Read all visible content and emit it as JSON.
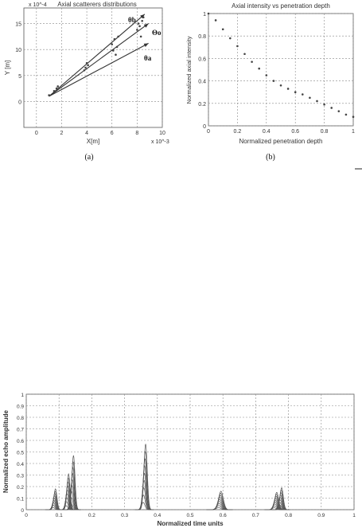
{
  "chart_data": [
    {
      "type": "scatter",
      "title": "Axial scatterers distributions",
      "xlabel": "X[m]",
      "ylabel": "Y [m]",
      "x_exponent": "x 10^-3",
      "y_exponent": "x 10^-4",
      "xlim": [
        -1,
        10
      ],
      "ylim": [
        -5,
        18
      ],
      "xticks": [
        "0",
        "2",
        "4",
        "6",
        "8",
        "10"
      ],
      "yticks": [
        "0",
        "5",
        "10",
        "15"
      ],
      "grid": true,
      "caption": "(a)",
      "angle_labels": [
        "θb",
        "θa",
        "Θo"
      ],
      "series": [
        {
          "values": [
            {
              "x": 1.0,
              "y": 1.2
            },
            {
              "x": 1.6,
              "y": 2.5
            },
            {
              "x": 1.4,
              "y": 2.0
            },
            {
              "x": 1.7,
              "y": 2.9
            },
            {
              "x": 3.9,
              "y": 6.5
            },
            {
              "x": 4.0,
              "y": 7.4
            },
            {
              "x": 3.8,
              "y": 6.0
            },
            {
              "x": 4.1,
              "y": 7.0
            },
            {
              "x": 6.2,
              "y": 12.0
            },
            {
              "x": 6.4,
              "y": 10.5
            },
            {
              "x": 6.0,
              "y": 11.0
            },
            {
              "x": 6.3,
              "y": 9.0
            },
            {
              "x": 6.5,
              "y": 12.5
            },
            {
              "x": 6.1,
              "y": 9.8
            },
            {
              "x": 8.2,
              "y": 14.5
            },
            {
              "x": 8.4,
              "y": 15.5
            },
            {
              "x": 8.0,
              "y": 13.8
            },
            {
              "x": 8.5,
              "y": 16.2
            },
            {
              "x": 8.3,
              "y": 12.5
            },
            {
              "x": 8.1,
              "y": 15.0
            }
          ]
        }
      ],
      "rays": [
        {
          "from": [
            1.0,
            1.0
          ],
          "to": [
            8.6,
            16.8
          ]
        },
        {
          "from": [
            1.0,
            1.0
          ],
          "to": [
            8.9,
            15.0
          ]
        },
        {
          "from": [
            1.0,
            1.0
          ],
          "to": [
            8.9,
            11.2
          ]
        }
      ]
    },
    {
      "type": "scatter",
      "title": "Axial intensity vs penetration depth",
      "xlabel": "Normalized penetration depth",
      "ylabel": "Normalized axial intensity",
      "xlim": [
        0,
        1
      ],
      "ylim": [
        0,
        1
      ],
      "xticks": [
        "0",
        "0.2",
        "0.4",
        "0.6",
        "0.8",
        "1"
      ],
      "yticks": [
        "0",
        "0.2",
        "0.4",
        "0.6",
        "0.8",
        "1"
      ],
      "grid": true,
      "caption": "(b)",
      "series": [
        {
          "values": [
            {
              "x": 0.0,
              "y": 1.0
            },
            {
              "x": 0.05,
              "y": 0.94
            },
            {
              "x": 0.1,
              "y": 0.86
            },
            {
              "x": 0.15,
              "y": 0.78
            },
            {
              "x": 0.2,
              "y": 0.71
            },
            {
              "x": 0.25,
              "y": 0.64
            },
            {
              "x": 0.3,
              "y": 0.57
            },
            {
              "x": 0.35,
              "y": 0.51
            },
            {
              "x": 0.4,
              "y": 0.45
            },
            {
              "x": 0.45,
              "y": 0.4
            },
            {
              "x": 0.5,
              "y": 0.36
            },
            {
              "x": 0.55,
              "y": 0.33
            },
            {
              "x": 0.6,
              "y": 0.3
            },
            {
              "x": 0.65,
              "y": 0.28
            },
            {
              "x": 0.7,
              "y": 0.25
            },
            {
              "x": 0.75,
              "y": 0.22
            },
            {
              "x": 0.8,
              "y": 0.19
            },
            {
              "x": 0.85,
              "y": 0.16
            },
            {
              "x": 0.9,
              "y": 0.13
            },
            {
              "x": 0.95,
              "y": 0.1
            },
            {
              "x": 1.0,
              "y": 0.08
            }
          ]
        }
      ]
    },
    {
      "type": "line",
      "title": "",
      "xlabel": "Normalized time units",
      "ylabel": "Normalized echo amplitude",
      "xlim": [
        0,
        1
      ],
      "ylim": [
        0,
        1
      ],
      "xticks": [
        "0",
        "0.1",
        "0.2",
        "0.3",
        "0.4",
        "0.5",
        "0.6",
        "0.7",
        "0.8",
        "0.9",
        "1"
      ],
      "yticks": [
        "0",
        "0.1",
        "0.2",
        "0.3",
        "0.4",
        "0.5",
        "0.6",
        "0.7",
        "0.8",
        "0.9",
        "1"
      ],
      "grid": true,
      "pulses": [
        {
          "center": 0.085,
          "width": 0.012,
          "peak": 0.18
        },
        {
          "center": 0.125,
          "width": 0.012,
          "peak": 0.31
        },
        {
          "center": 0.14,
          "width": 0.012,
          "peak": 0.47
        },
        {
          "center": 0.36,
          "width": 0.013,
          "peak": 0.57
        },
        {
          "center": 0.59,
          "width": 0.018,
          "peak": 0.16
        },
        {
          "center": 0.76,
          "width": 0.015,
          "peak": 0.15
        },
        {
          "center": 0.775,
          "width": 0.013,
          "peak": 0.19
        }
      ]
    }
  ]
}
